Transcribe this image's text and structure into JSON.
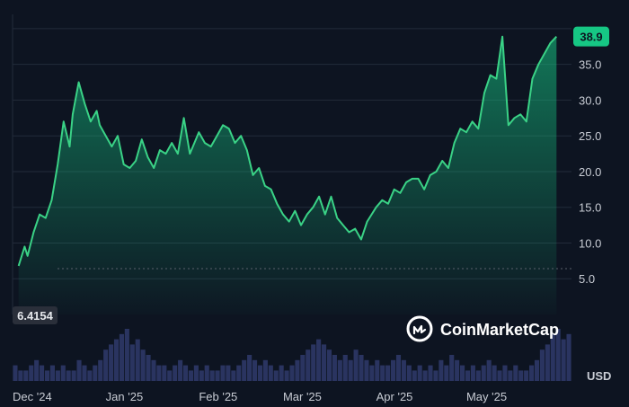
{
  "brand": {
    "name": "CoinMarketCap",
    "icon": "coinmarketcap-logo-icon"
  },
  "currency": "USD",
  "colors": {
    "background": "#0d1421",
    "line": "#3ad286",
    "badge": "#16c784",
    "volume": "#2a3460",
    "start_label_bg": "#2a2f3a"
  },
  "chart_data": {
    "type": "area",
    "title": "",
    "xlabel": "",
    "ylabel": "",
    "yticks": [
      5.0,
      10.0,
      15.0,
      20.0,
      25.0,
      30.0,
      35.0
    ],
    "ylim": [
      0,
      42
    ],
    "xlim": [
      "2024-12-01",
      "2025-06-05"
    ],
    "xticks": [
      {
        "date": "2024-12-01",
        "label": "Dec '24"
      },
      {
        "date": "2025-01-01",
        "label": "Jan '25"
      },
      {
        "date": "2025-02-01",
        "label": "Feb '25"
      },
      {
        "date": "2025-03-01",
        "label": "Mar '25"
      },
      {
        "date": "2025-04-01",
        "label": "Apr '25"
      },
      {
        "date": "2025-05-01",
        "label": "May '25"
      }
    ],
    "current_price_label": "38.9",
    "start_price_label": "6.4154",
    "start_price": 6.4154,
    "grid": true,
    "price_series": {
      "x": [
        "2024-12-03",
        "2024-12-05",
        "2024-12-06",
        "2024-12-08",
        "2024-12-10",
        "2024-12-12",
        "2024-12-14",
        "2024-12-16",
        "2024-12-18",
        "2024-12-20",
        "2024-12-21",
        "2024-12-23",
        "2024-12-25",
        "2024-12-27",
        "2024-12-29",
        "2024-12-30",
        "2025-01-01",
        "2025-01-03",
        "2025-01-05",
        "2025-01-07",
        "2025-01-09",
        "2025-01-11",
        "2025-01-13",
        "2025-01-15",
        "2025-01-17",
        "2025-01-19",
        "2025-01-21",
        "2025-01-23",
        "2025-01-25",
        "2025-01-27",
        "2025-01-29",
        "2025-02-01",
        "2025-02-03",
        "2025-02-05",
        "2025-02-07",
        "2025-02-09",
        "2025-02-11",
        "2025-02-13",
        "2025-02-15",
        "2025-02-17",
        "2025-02-19",
        "2025-02-21",
        "2025-02-23",
        "2025-02-25",
        "2025-02-27",
        "2025-03-01",
        "2025-03-03",
        "2025-03-05",
        "2025-03-07",
        "2025-03-09",
        "2025-03-11",
        "2025-03-13",
        "2025-03-15",
        "2025-03-17",
        "2025-03-19",
        "2025-03-21",
        "2025-03-23",
        "2025-03-25",
        "2025-03-27",
        "2025-03-29",
        "2025-04-01",
        "2025-04-03",
        "2025-04-05",
        "2025-04-07",
        "2025-04-09",
        "2025-04-11",
        "2025-04-13",
        "2025-04-15",
        "2025-04-17",
        "2025-04-19",
        "2025-04-21",
        "2025-04-23",
        "2025-04-25",
        "2025-04-27",
        "2025-04-29",
        "2025-05-01",
        "2025-05-03",
        "2025-05-05",
        "2025-05-07",
        "2025-05-09",
        "2025-05-11",
        "2025-05-13",
        "2025-05-15",
        "2025-05-17",
        "2025-05-19",
        "2025-05-21",
        "2025-05-23",
        "2025-05-25",
        "2025-05-27",
        "2025-05-29",
        "2025-05-31"
      ],
      "values": [
        6.8,
        9.5,
        8.2,
        11.5,
        14.0,
        13.5,
        16.0,
        21.0,
        27.0,
        23.5,
        28.0,
        32.5,
        29.5,
        27.0,
        28.5,
        26.5,
        25.0,
        23.5,
        25.0,
        21.0,
        20.5,
        21.5,
        24.5,
        22.0,
        20.5,
        23.0,
        22.5,
        24.0,
        22.5,
        27.5,
        22.5,
        25.5,
        24.0,
        23.5,
        25.0,
        26.5,
        26.0,
        24.0,
        25.0,
        23.0,
        19.5,
        20.5,
        18.0,
        17.5,
        15.5,
        14.0,
        13.0,
        14.5,
        12.5,
        14.0,
        15.0,
        16.5,
        14.0,
        16.5,
        13.5,
        12.5,
        11.5,
        12.0,
        10.5,
        13.0,
        15.0,
        16.0,
        15.5,
        17.5,
        17.0,
        18.5,
        19.0,
        19.0,
        17.5,
        19.5,
        20.0,
        21.5,
        20.5,
        24.0,
        26.0,
        25.5,
        27.0,
        26.0,
        31.0,
        33.5,
        33.0,
        38.9,
        26.5,
        27.5,
        28.0,
        27.0,
        33.0,
        35.0,
        36.5,
        38.0,
        38.9
      ]
    },
    "volume_series": {
      "values": [
        3,
        2,
        2,
        3,
        4,
        3,
        2,
        3,
        2,
        3,
        2,
        2,
        4,
        3,
        2,
        3,
        4,
        6,
        7,
        8,
        9,
        10,
        7,
        8,
        6,
        5,
        4,
        3,
        3,
        2,
        3,
        4,
        3,
        2,
        3,
        2,
        3,
        2,
        2,
        3,
        3,
        2,
        3,
        4,
        5,
        4,
        3,
        4,
        3,
        2,
        3,
        2,
        3,
        4,
        5,
        6,
        7,
        8,
        7,
        6,
        5,
        4,
        5,
        4,
        6,
        5,
        4,
        3,
        4,
        3,
        3,
        4,
        5,
        4,
        3,
        2,
        3,
        2,
        3,
        2,
        4,
        3,
        5,
        4,
        3,
        2,
        3,
        2,
        3,
        4,
        3,
        2,
        3,
        2,
        3,
        2,
        2,
        3,
        4,
        6,
        7,
        9,
        10,
        8,
        9
      ]
    }
  }
}
